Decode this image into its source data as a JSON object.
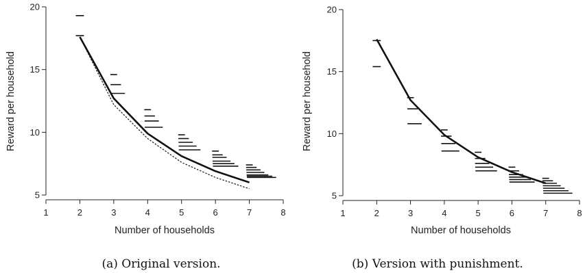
{
  "chart_data": [
    {
      "type": "line",
      "caption": "(a) Original version.",
      "xlabel": "Number of households",
      "ylabel": "Reward per household",
      "xlim": [
        1,
        8
      ],
      "ylim": [
        5,
        20
      ],
      "xticks": [
        1,
        2,
        3,
        4,
        5,
        6,
        7,
        8
      ],
      "yticks": [
        5,
        10,
        15,
        20
      ],
      "grid": false,
      "series": [
        {
          "style": "solid",
          "x": [
            2,
            3,
            4,
            5,
            6,
            7
          ],
          "values": [
            17.6,
            12.7,
            9.9,
            8.1,
            6.9,
            6.0
          ]
        },
        {
          "style": "dotted",
          "x": [
            2,
            3,
            4,
            5,
            6,
            7
          ],
          "values": [
            17.6,
            12.2,
            9.5,
            7.6,
            6.4,
            5.5
          ]
        }
      ],
      "choice_marks": [
        {
          "x": 2,
          "values": [
            19.3,
            17.7
          ]
        },
        {
          "x": 3,
          "values": [
            14.6,
            13.8,
            13.1
          ]
        },
        {
          "x": 4,
          "values": [
            11.8,
            11.3,
            10.9,
            10.4
          ]
        },
        {
          "x": 5,
          "values": [
            9.8,
            9.5,
            9.2,
            8.9,
            8.6
          ]
        },
        {
          "x": 6,
          "values": [
            8.5,
            8.2,
            8.0,
            7.7,
            7.5,
            7.3
          ]
        },
        {
          "x": 7,
          "values": [
            7.4,
            7.2,
            7.0,
            6.8,
            6.6,
            6.5,
            6.4
          ]
        }
      ]
    },
    {
      "type": "line",
      "caption": "(b) Version with punishment.",
      "xlabel": "Number of households",
      "ylabel": "Reward per household",
      "xlim": [
        1,
        8
      ],
      "ylim": [
        5,
        20
      ],
      "xticks": [
        1,
        2,
        3,
        4,
        5,
        6,
        7,
        8
      ],
      "yticks": [
        5,
        10,
        15,
        20
      ],
      "grid": false,
      "series": [
        {
          "style": "solid",
          "x": [
            2,
            3,
            4,
            5,
            6,
            7
          ],
          "values": [
            17.6,
            12.7,
            9.9,
            8.1,
            6.9,
            6.0
          ]
        }
      ],
      "choice_marks": [
        {
          "x": 2,
          "values": [
            17.5,
            15.4
          ]
        },
        {
          "x": 3,
          "values": [
            12.9,
            12.0,
            10.8
          ]
        },
        {
          "x": 4,
          "values": [
            10.3,
            9.8,
            9.2,
            8.6
          ]
        },
        {
          "x": 5,
          "values": [
            8.5,
            8.0,
            7.6,
            7.3,
            7.0
          ]
        },
        {
          "x": 6,
          "values": [
            7.3,
            7.0,
            6.7,
            6.5,
            6.3,
            6.1
          ]
        },
        {
          "x": 7,
          "values": [
            6.4,
            6.2,
            6.0,
            5.8,
            5.6,
            5.4,
            5.2
          ]
        }
      ]
    }
  ]
}
